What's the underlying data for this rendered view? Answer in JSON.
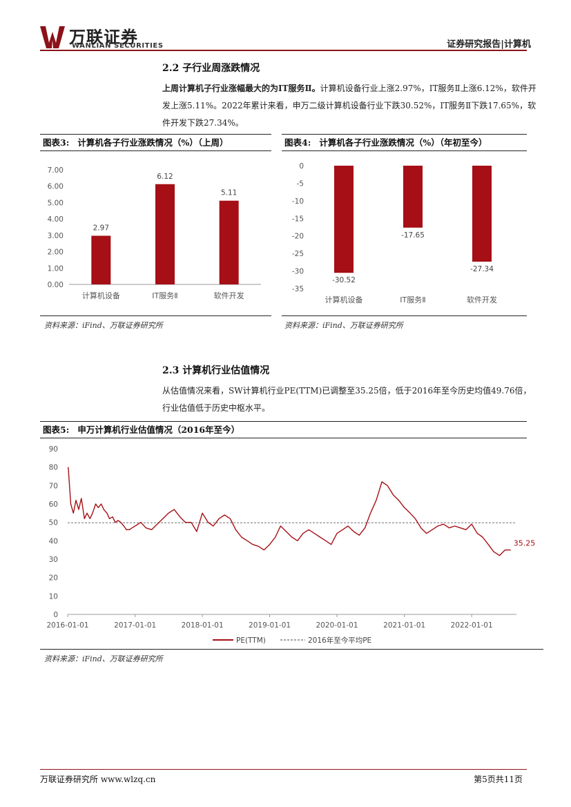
{
  "header": {
    "logo_cn": "万联证券",
    "logo_en": "WANLIAN SECURITIES",
    "report_type": "证券研究报告|计算机"
  },
  "section_22": {
    "heading": "2.2 子行业周涨跌情况",
    "lead": "上周计算机子行业涨幅最大的为IT服务Ⅱ。",
    "body": "计算机设备行业上涨2.97%，IT服务Ⅱ上涨6.12%，软件开发上涨5.11%。2022年累计来看，申万二级计算机设备行业下跌30.52%，IT服务Ⅱ下跌17.65%，软件开发下跌27.34%。"
  },
  "fig3": {
    "label": "图表3:",
    "title": "计算机各子行业涨跌情况（%）（上周）",
    "source": "资料来源：iFind、万联证券研究所"
  },
  "fig4": {
    "label": "图表4:",
    "title": "计算机各子行业涨跌情况（%）（年初至今）",
    "source": "资料来源：iFind、万联证券研究所"
  },
  "section_23": {
    "heading": "2.3 计算机行业估值情况",
    "body": "从估值情况来看，SW计算机行业PE(TTM)已调整至35.25倍，低于2016年至今历史均值49.76倍，行业估值低于历史中枢水平。"
  },
  "fig5": {
    "label": "图表5:",
    "title": "申万计算机行业估值情况（2016年至今）",
    "source": "资料来源：iFind、万联证券研究所"
  },
  "footer": {
    "left": "万联证券研究所 www.wlzq.cn",
    "right": "第5页共11页"
  },
  "colors": {
    "brand": "#8c1219",
    "bar": "#a50f15",
    "line": "#a50f15",
    "avg": "#808080"
  },
  "chart_data": [
    {
      "type": "bar",
      "categories": [
        "计算机设备",
        "IT服务Ⅱ",
        "软件开发"
      ],
      "values": [
        2.97,
        6.12,
        5.11
      ],
      "value_labels": [
        "2.97",
        "6.12",
        "5.11"
      ],
      "yticks": [
        "0.00",
        "1.00",
        "2.00",
        "3.00",
        "4.00",
        "5.00",
        "6.00",
        "7.00"
      ],
      "ylim": [
        0,
        7.5
      ],
      "grid": false
    },
    {
      "type": "bar",
      "categories": [
        "计算机设备",
        "IT服务Ⅱ",
        "软件开发"
      ],
      "values": [
        -30.52,
        -17.65,
        -27.34
      ],
      "value_labels": [
        "-30.52",
        "-17.65",
        "-27.34"
      ],
      "yticks": [
        "0",
        "-5",
        "-10",
        "-15",
        "-20",
        "-25",
        "-30",
        "-35"
      ],
      "ylim": [
        -35,
        0
      ],
      "grid": false
    },
    {
      "type": "line",
      "xticks": [
        "2016-01-01",
        "2017-01-01",
        "2018-01-01",
        "2019-01-01",
        "2020-01-01",
        "2021-01-01",
        "2022-01-01"
      ],
      "yticks": [
        "0",
        "10",
        "20",
        "30",
        "40",
        "50",
        "60",
        "70",
        "80",
        "90"
      ],
      "ylim": [
        0,
        90
      ],
      "xlim": [
        "2016-01-01",
        "2022-09-01"
      ],
      "end_label": "35.25",
      "legend_position": "bottom",
      "series": [
        {
          "name": "PE(TTM)",
          "x": [
            "2016-01-04",
            "2016-01-18",
            "2016-02-01",
            "2016-02-15",
            "2016-03-01",
            "2016-03-15",
            "2016-04-01",
            "2016-04-15",
            "2016-05-01",
            "2016-05-15",
            "2016-06-01",
            "2016-06-15",
            "2016-07-01",
            "2016-07-15",
            "2016-08-01",
            "2016-08-15",
            "2016-09-01",
            "2016-09-15",
            "2016-10-01",
            "2016-10-15",
            "2016-11-01",
            "2016-11-15",
            "2016-12-01",
            "2016-12-15",
            "2017-01-01",
            "2017-02-01",
            "2017-03-01",
            "2017-04-01",
            "2017-05-01",
            "2017-06-01",
            "2017-07-01",
            "2017-08-01",
            "2017-09-01",
            "2017-10-01",
            "2017-11-01",
            "2017-12-01",
            "2018-01-01",
            "2018-02-01",
            "2018-03-01",
            "2018-04-01",
            "2018-05-01",
            "2018-06-01",
            "2018-07-01",
            "2018-08-01",
            "2018-09-01",
            "2018-10-01",
            "2018-11-01",
            "2018-12-01",
            "2019-01-01",
            "2019-02-01",
            "2019-03-01",
            "2019-04-01",
            "2019-05-01",
            "2019-06-01",
            "2019-07-01",
            "2019-08-01",
            "2019-09-01",
            "2019-10-01",
            "2019-11-01",
            "2019-12-01",
            "2020-01-01",
            "2020-02-01",
            "2020-03-01",
            "2020-04-01",
            "2020-05-01",
            "2020-06-01",
            "2020-07-01",
            "2020-08-01",
            "2020-09-01",
            "2020-10-01",
            "2020-11-01",
            "2020-12-01",
            "2021-01-01",
            "2021-02-01",
            "2021-03-01",
            "2021-04-01",
            "2021-05-01",
            "2021-06-01",
            "2021-07-01",
            "2021-08-01",
            "2021-09-01",
            "2021-10-01",
            "2021-11-01",
            "2021-12-01",
            "2022-01-01",
            "2022-02-01",
            "2022-03-01",
            "2022-04-01",
            "2022-05-01",
            "2022-06-01",
            "2022-07-01",
            "2022-08-01"
          ],
          "values": [
            80,
            60,
            55,
            62,
            57,
            63,
            52,
            55,
            52,
            55,
            60,
            58,
            60,
            57,
            55,
            52,
            53,
            50,
            51,
            50,
            48,
            46,
            46,
            47,
            48,
            50,
            47,
            46,
            49,
            52,
            55,
            57,
            53,
            50,
            50,
            45,
            55,
            50,
            48,
            52,
            54,
            52,
            46,
            42,
            40,
            38,
            37,
            35,
            38,
            42,
            48,
            45,
            42,
            40,
            44,
            46,
            44,
            42,
            40,
            38,
            44,
            46,
            48,
            45,
            43,
            47,
            55,
            62,
            72,
            70,
            65,
            62,
            58,
            55,
            52,
            47,
            44,
            46,
            48,
            49,
            47,
            48,
            47,
            46,
            49,
            44,
            42,
            38,
            34,
            32,
            35,
            35
          ]
        }
      ],
      "avg_series": {
        "name": "2016年至今平均PE",
        "value": 49.76
      }
    }
  ]
}
